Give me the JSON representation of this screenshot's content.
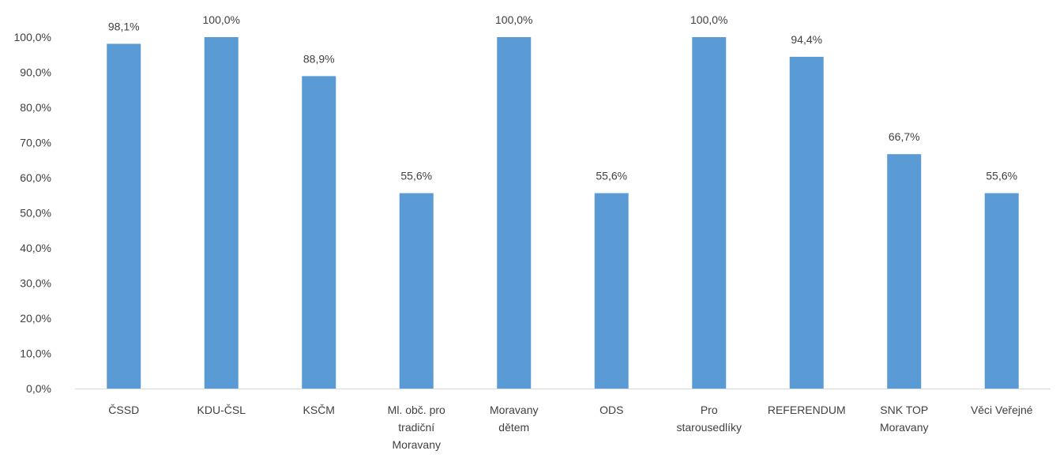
{
  "chart_data": {
    "type": "bar",
    "categories": [
      [
        "ČSSD"
      ],
      [
        "KDU-ČSL"
      ],
      [
        "KSČM"
      ],
      [
        "Ml. obč. pro",
        "tradiční",
        "Moravany"
      ],
      [
        "Moravany",
        "dětem"
      ],
      [
        "ODS"
      ],
      [
        "Pro",
        "starousedlíky"
      ],
      [
        "REFERENDUM"
      ],
      [
        "SNK TOP",
        "Moravany"
      ],
      [
        "Věci Veřejné"
      ]
    ],
    "values": [
      98.1,
      100.0,
      88.9,
      55.6,
      100.0,
      55.6,
      100.0,
      94.4,
      66.7,
      55.6
    ],
    "data_labels": [
      "98,1%",
      "100,0%",
      "88,9%",
      "55,6%",
      "100,0%",
      "55,6%",
      "100,0%",
      "94,4%",
      "66,7%",
      "55,6%"
    ],
    "y_ticks": [
      "0,0%",
      "10,0%",
      "20,0%",
      "30,0%",
      "40,0%",
      "50,0%",
      "60,0%",
      "70,0%",
      "80,0%",
      "90,0%",
      "100,0%"
    ],
    "ylim": [
      0,
      100
    ],
    "grid": false,
    "legend": "none",
    "colors": {
      "bar": "#5b9bd5",
      "axis": "#d9d9d9",
      "text": "#404040"
    }
  }
}
